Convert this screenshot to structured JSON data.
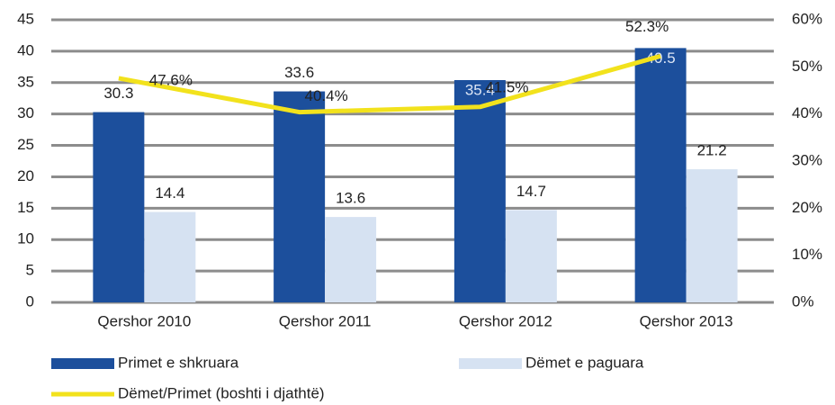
{
  "chart_data": {
    "type": "bar",
    "categories": [
      "Qershor 2010",
      "Qershor 2011",
      "Qershor 2012",
      "Qershor 2013"
    ],
    "series": [
      {
        "name": "Primet e shkruara",
        "color": "#1c4f9c",
        "values": [
          30.3,
          33.6,
          35.4,
          40.5
        ]
      },
      {
        "name": "Dëmet e paguara",
        "color": "#d6e2f2",
        "values": [
          14.4,
          13.6,
          14.7,
          21.2
        ]
      },
      {
        "name": "Dëmet/Primet (boshti i djathtë)",
        "type": "line",
        "axis": "y2",
        "color": "#f2e21c",
        "values": [
          47.6,
          40.4,
          41.5,
          52.3
        ],
        "value_labels": [
          "47.6%",
          "40.4%",
          "41.5%",
          "52.3%"
        ]
      }
    ],
    "ylim": [
      0,
      45
    ],
    "yticks": [
      0,
      5,
      10,
      15,
      20,
      25,
      30,
      35,
      40,
      45
    ],
    "y2lim": [
      0,
      60
    ],
    "y2ticks": [
      {
        "value": 0,
        "label": "0%"
      },
      {
        "value": 10,
        "label": "10%"
      },
      {
        "value": 20,
        "label": "20%"
      },
      {
        "value": 30,
        "label": "30%"
      },
      {
        "value": 40,
        "label": "40%"
      },
      {
        "value": 50,
        "label": "50%"
      },
      {
        "value": 60,
        "label": "60%"
      }
    ],
    "grid": true,
    "legend": "bottom"
  }
}
